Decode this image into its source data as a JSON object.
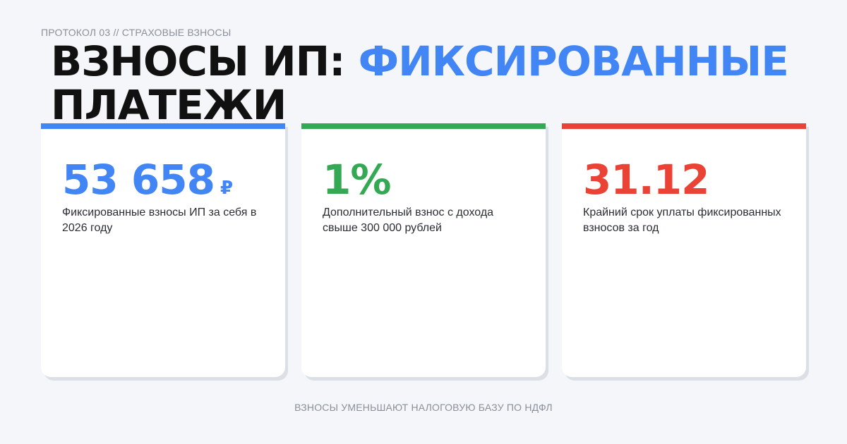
{
  "header": {
    "eyebrow": "ПРОТОКОЛ 03 // СТРАХОВЫЕ ВЗНОСЫ",
    "title_main": "ВЗНОСЫ ИП: ",
    "title_accent": "ФИКСИРОВАННЫЕ",
    "title_rest": " ПЛАТЕЖИ"
  },
  "cards": [
    {
      "value": "53 658",
      "unit": "₽",
      "description": "Фиксированные взносы ИП за себя в 2026 году",
      "color": "#4285f4"
    },
    {
      "value": "1%",
      "unit": "",
      "description": "Дополнительный взнос с дохода свыше 300 000 рублей",
      "color": "#34a853"
    },
    {
      "value": "31.12",
      "unit": "",
      "description": "Крайний срок уплаты фиксированных взносов за год",
      "color": "#ea4335"
    }
  ],
  "footer": "ВЗНОСЫ УМЕНЬШАЮТ НАЛОГОВУЮ БАЗУ ПО НДФЛ",
  "colors": {
    "accent_blue": "#4285f4",
    "accent_green": "#34a853",
    "accent_red": "#ea4335",
    "background": "#f5f6fa"
  }
}
